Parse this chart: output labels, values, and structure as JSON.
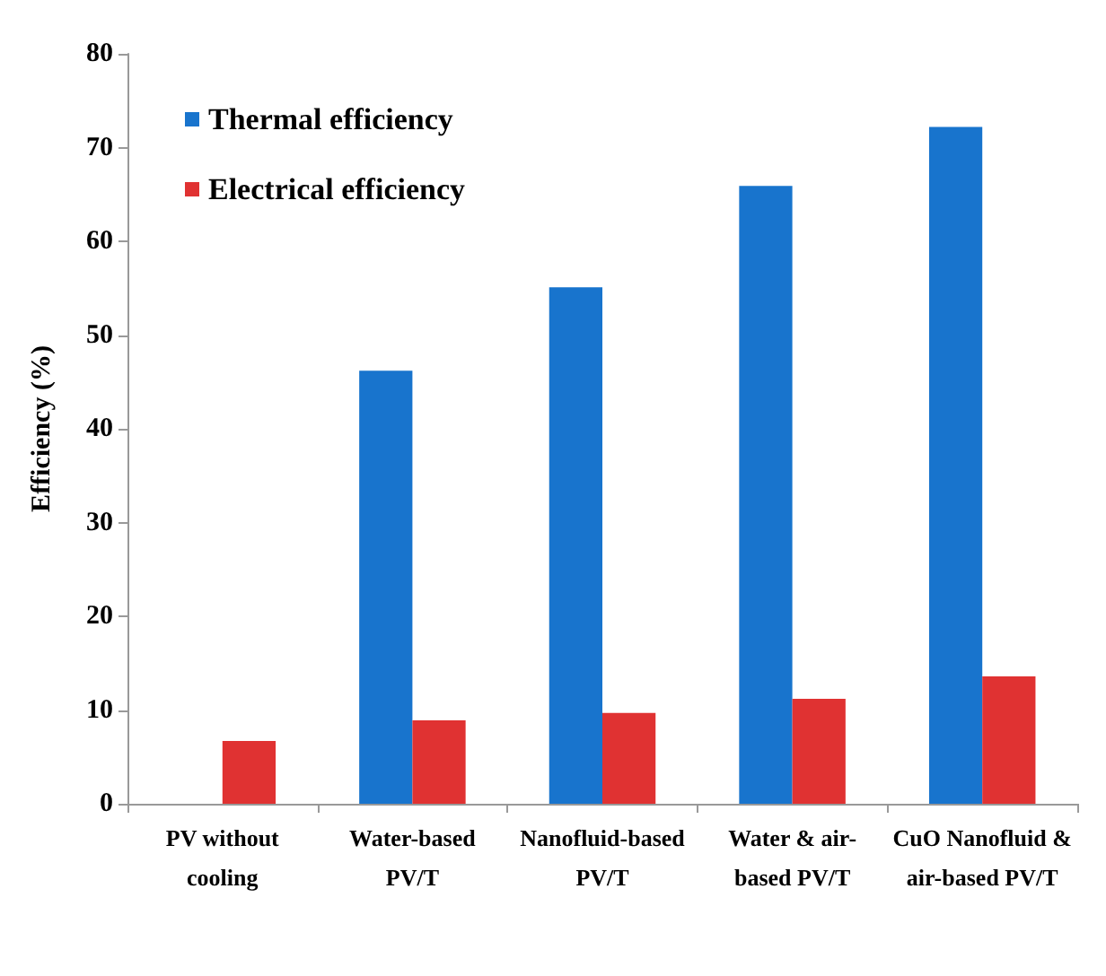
{
  "chart_data": {
    "type": "bar",
    "ylabel": "Efficiency (%)",
    "categories": [
      "PV without\ncooling",
      "Water-based\nPV/T",
      "Nanofluid-based\nPV/T",
      "Water & air-\nbased PV/T",
      "CuO Nanofluid &\nair-based PV/T"
    ],
    "series": [
      {
        "name": "Thermal efficiency",
        "color": "#1874cd",
        "values": [
          null,
          46.2,
          55.1,
          65.9,
          72.2
        ]
      },
      {
        "name": "Electrical efficiency",
        "color": "#e03232",
        "values": [
          6.7,
          8.9,
          9.7,
          11.2,
          13.6
        ]
      }
    ],
    "ylim": [
      0,
      80
    ],
    "yticks": [
      0,
      10,
      20,
      30,
      40,
      50,
      60,
      70,
      80
    ],
    "grid": false,
    "legend": "top left"
  }
}
